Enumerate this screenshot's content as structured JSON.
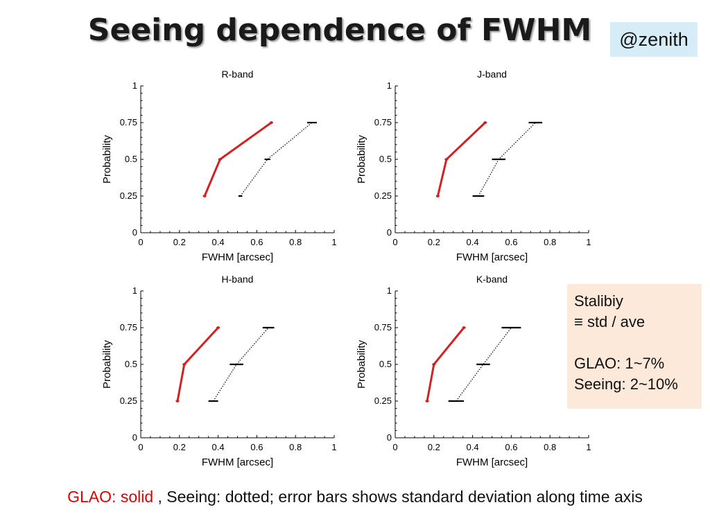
{
  "slide": {
    "title": "Seeing dependence of FWHM",
    "tag": "@zenith",
    "stability_box": {
      "line1": "Stalibiy",
      "line2": "≡ std / ave",
      "line3": "GLAO: 1~7%",
      "line4": "Seeing: 2~10%"
    },
    "caption": {
      "glao": "GLAO: solid",
      "rest": " , Seeing: dotted; error bars shows standard deviation along time axis"
    }
  },
  "colors": {
    "glao": "#d42020",
    "seeing": "#000000"
  },
  "chart_data": [
    {
      "type": "line",
      "title": "R-band",
      "xlabel": "FWHM [arcsec]",
      "ylabel": "Probability",
      "xlim": [
        0,
        1
      ],
      "ylim": [
        0,
        1
      ],
      "xticks": [
        "0",
        "0.2",
        "0.4",
        "0.6",
        "0.8",
        "1"
      ],
      "yticks": [
        "0",
        "0.25",
        "0.5",
        "0.75",
        "1"
      ],
      "series": [
        {
          "style": "solid",
          "y": [
            0.25,
            0.5,
            0.75
          ],
          "x": [
            0.33,
            0.41,
            0.675
          ],
          "xerr": [
            0,
            0,
            0
          ]
        },
        {
          "style": "dotted",
          "y": [
            0.25,
            0.5,
            0.75
          ],
          "x": [
            0.515,
            0.655,
            0.885
          ],
          "xerr": [
            0.01,
            0.015,
            0.025
          ]
        }
      ]
    },
    {
      "type": "line",
      "title": "J-band",
      "xlabel": "FWHM [arcsec]",
      "ylabel": "Probability",
      "xlim": [
        0,
        1
      ],
      "ylim": [
        0,
        1
      ],
      "xticks": [
        "0",
        "0.2",
        "0.4",
        "0.6",
        "0.8",
        "1"
      ],
      "yticks": [
        "0",
        "0.25",
        "0.5",
        "0.75",
        "1"
      ],
      "series": [
        {
          "style": "solid",
          "y": [
            0.25,
            0.5,
            0.75
          ],
          "x": [
            0.22,
            0.265,
            0.465
          ],
          "xerr": [
            0,
            0,
            0
          ]
        },
        {
          "style": "dotted",
          "y": [
            0.25,
            0.5,
            0.75
          ],
          "x": [
            0.43,
            0.535,
            0.725
          ],
          "xerr": [
            0.03,
            0.035,
            0.035
          ]
        }
      ]
    },
    {
      "type": "line",
      "title": "H-band",
      "xlabel": "FWHM [arcsec]",
      "ylabel": "Probability",
      "xlim": [
        0,
        1
      ],
      "ylim": [
        0,
        1
      ],
      "xticks": [
        "0",
        "0.2",
        "0.4",
        "0.6",
        "0.8",
        "1"
      ],
      "yticks": [
        "0",
        "0.25",
        "0.5",
        "0.75",
        "1"
      ],
      "series": [
        {
          "style": "solid",
          "y": [
            0.25,
            0.5,
            0.75
          ],
          "x": [
            0.19,
            0.225,
            0.4
          ],
          "xerr": [
            0,
            0,
            0
          ]
        },
        {
          "style": "dotted",
          "y": [
            0.25,
            0.5,
            0.75
          ],
          "x": [
            0.375,
            0.495,
            0.66
          ],
          "xerr": [
            0.025,
            0.035,
            0.03
          ]
        }
      ]
    },
    {
      "type": "line",
      "title": "K-band",
      "xlabel": "FWHM [arcsec]",
      "ylabel": "Probability",
      "xlim": [
        0,
        1
      ],
      "ylim": [
        0,
        1
      ],
      "xticks": [
        "0",
        "0.2",
        "0.4",
        "0.6",
        "0.8",
        "1"
      ],
      "yticks": [
        "0",
        "0.25",
        "0.5",
        "0.75",
        "1"
      ],
      "series": [
        {
          "style": "solid",
          "y": [
            0.25,
            0.5,
            0.75
          ],
          "x": [
            0.165,
            0.2,
            0.355
          ],
          "xerr": [
            0,
            0,
            0
          ]
        },
        {
          "style": "dotted",
          "y": [
            0.25,
            0.5,
            0.75
          ],
          "x": [
            0.315,
            0.455,
            0.6
          ],
          "xerr": [
            0.04,
            0.035,
            0.05
          ]
        }
      ]
    }
  ]
}
